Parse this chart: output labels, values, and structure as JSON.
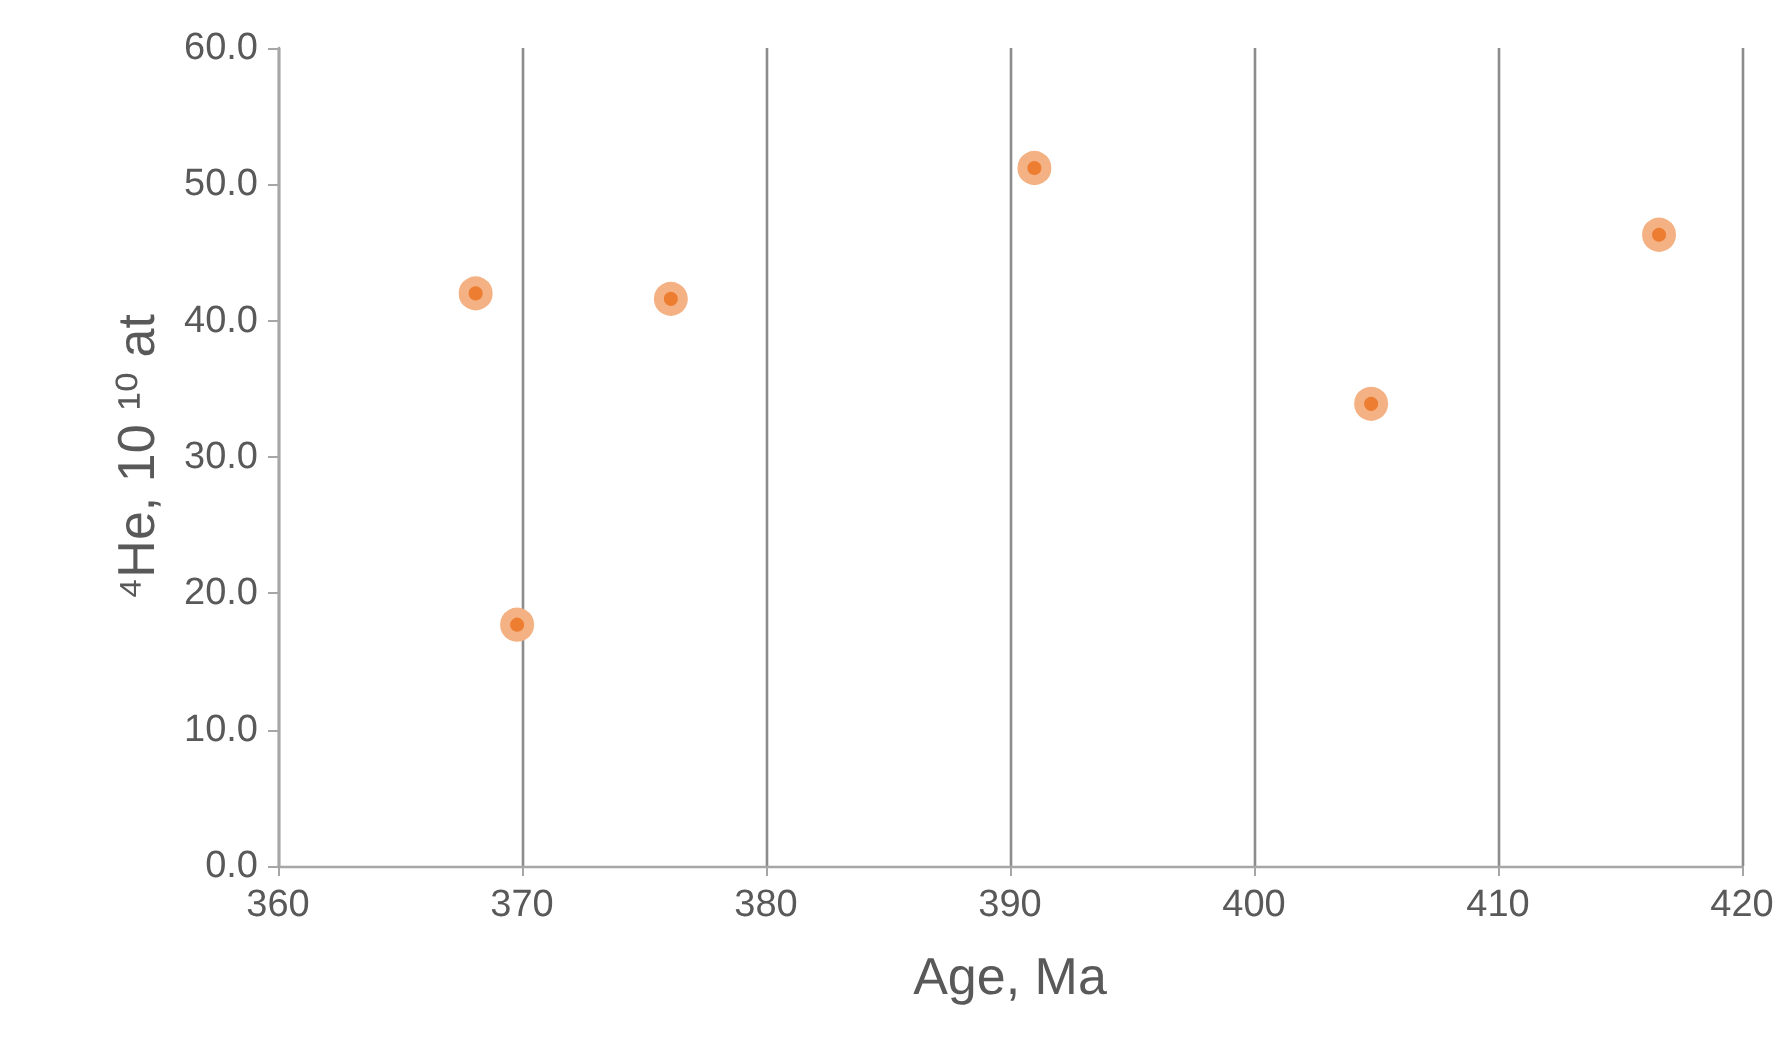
{
  "chart_data": {
    "type": "scatter",
    "xlabel": "Age, Ma",
    "ylabel": "⁴He, 10 ¹⁰ at",
    "x": [
      368.1,
      369.8,
      376.1,
      391.0,
      404.8,
      416.6
    ],
    "series": [
      {
        "color": "#ed7d31",
        "values": [
          42.0,
          17.7,
          41.6,
          51.2,
          33.9,
          46.3
        ]
      }
    ],
    "xlim": [
      360,
      420
    ],
    "xticks": [
      360,
      370,
      380,
      390,
      400,
      410,
      420
    ],
    "ylim": [
      0,
      60
    ],
    "yticks": [
      {
        "value": 0,
        "label": "0.0"
      },
      {
        "value": 10,
        "label": "10.0"
      },
      {
        "value": 20,
        "label": "20.0"
      },
      {
        "value": 30,
        "label": "30.0"
      },
      {
        "value": 40,
        "label": "40.0"
      },
      {
        "value": 50,
        "label": "50.0"
      },
      {
        "value": 60,
        "label": "60.0"
      }
    ],
    "grid": "x",
    "marker": "circle"
  }
}
